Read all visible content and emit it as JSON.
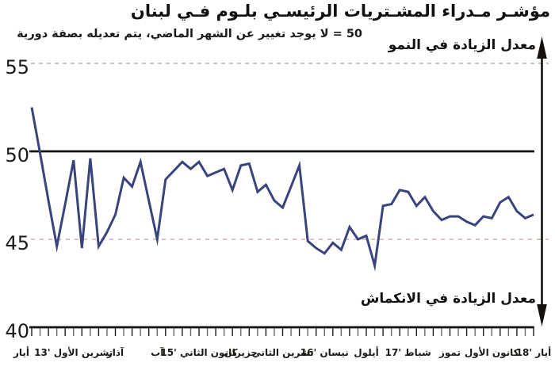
{
  "title": "مؤشـر مـدراء المشـتريات الرئيسـي بلـوم فـي لبنان",
  "subtitle": "50 = لا يوجد تغيير عن الشهر الماضي، يتم تعديله بصفة دورية",
  "annotations": {
    "growth": "معدل الزيادة في النمو",
    "contraction": "معدل الزيادة في الانكماش"
  },
  "chart_data": {
    "type": "line",
    "title": "مؤشر مدراء المشتريات الرئيسي بلوم في لبنان",
    "subtitle": "50 = لا يوجد تغيير عن الشهر الماضي، يتم تعديله بصفة دورية",
    "baseline": 50,
    "ylim": [
      40,
      56.5
    ],
    "y_ticks": [
      55,
      50,
      45,
      40
    ],
    "months_total": 61,
    "x_tick_every_n_months": 5,
    "x_range_note": "monthly points from أيار 2013 to أيار 2018",
    "x_tick_labels": [
      "أيار",
      "تشرين الأول '13",
      "آذار",
      "آب",
      "كانون الثاني '15",
      "حزيران",
      "تشرين الثاني",
      "نيسان '16",
      "أيلول",
      "شباط '17",
      "تموز",
      "كانون الأول",
      "أيار '18"
    ],
    "values": [
      52.5,
      49.9,
      47.2,
      44.6,
      47.0,
      49.5,
      44.5,
      49.6,
      44.6,
      45.4,
      46.4,
      48.5,
      48.0,
      49.4,
      47.2,
      45.0,
      48.4,
      48.9,
      49.4,
      49.0,
      49.4,
      48.6,
      48.8,
      49.0,
      47.8,
      49.2,
      49.3,
      47.7,
      48.1,
      47.2,
      46.8,
      48.0,
      49.2,
      44.9,
      44.5,
      44.2,
      44.8,
      44.4,
      45.7,
      45.0,
      45.2,
      43.5,
      46.9,
      47.0,
      47.8,
      47.7,
      46.9,
      47.4,
      46.6,
      46.1,
      46.3,
      46.3,
      46.0,
      45.8,
      46.3,
      46.2,
      47.1,
      47.4,
      46.6,
      46.2,
      46.4
    ],
    "colors": {
      "line": "#3a447c",
      "baseline": "#14110e",
      "grid_upper_dashed": "#b3b0ad",
      "grid_lower_dashed": "#cbb0aa"
    },
    "legend": "none",
    "grid": "horizontal dashed at 45 and 55, solid reference at 50, solid axis at 40"
  }
}
